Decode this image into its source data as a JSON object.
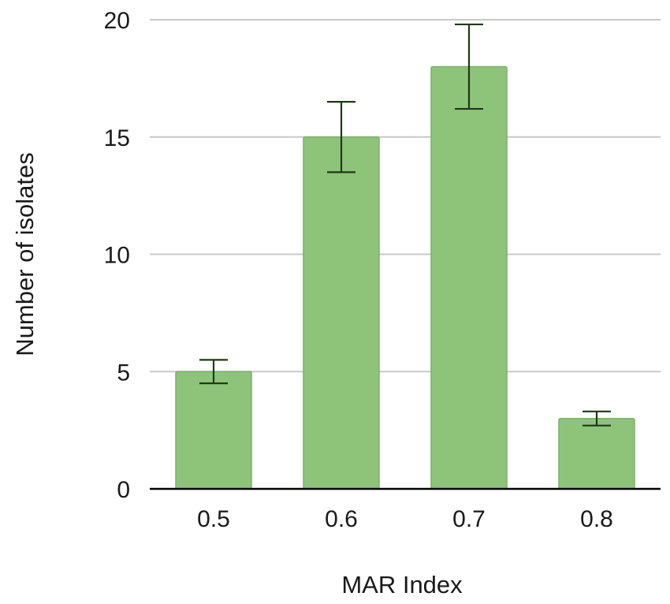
{
  "chart_data": {
    "type": "bar",
    "title": "",
    "xlabel": "MAR Index",
    "ylabel": "Number of isolates",
    "categories": [
      "0.5",
      "0.6",
      "0.7",
      "0.8"
    ],
    "values": [
      5,
      15,
      18,
      3
    ],
    "error_bars": {
      "lower": [
        4.5,
        13.5,
        16.2,
        2.7
      ],
      "upper": [
        5.5,
        16.5,
        19.8,
        3.3
      ]
    },
    "ylim": [
      0,
      20
    ],
    "yticks": [
      "0",
      "5",
      "10",
      "15",
      "20"
    ],
    "grid": "horizontal",
    "legend": "none",
    "colors": {
      "bar": "#8dc47a",
      "bar_edge": "#7ab267",
      "error_bar": "#1f3a12",
      "grid": "#c8c8c8",
      "axis": "#000000"
    }
  }
}
